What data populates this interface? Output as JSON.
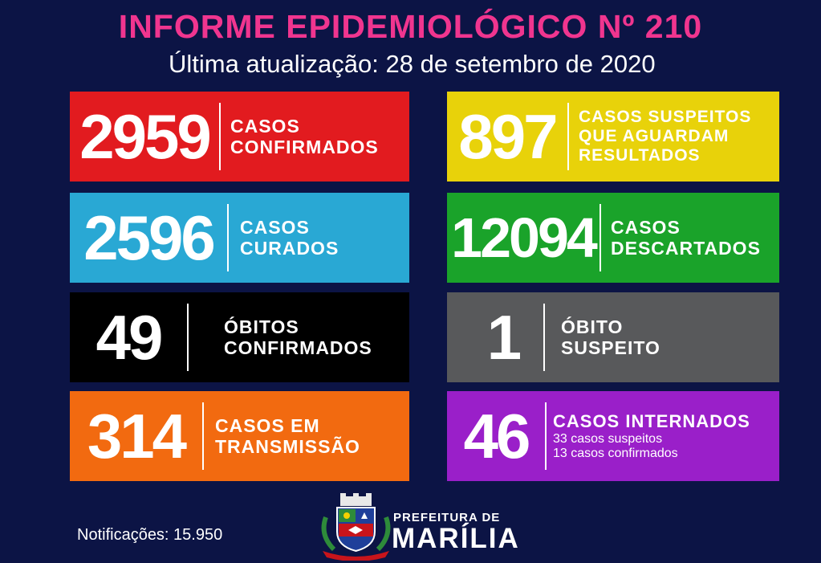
{
  "header": {
    "title": "INFORME EPIDEMIOLÓGICO Nº 210",
    "subtitle": "Última atualização: 28 de setembro de 2020"
  },
  "cards": {
    "confirmed": {
      "value": "2959",
      "line1": "CASOS",
      "line2": "CONFIRMADOS",
      "color": "#e21b1f"
    },
    "suspected": {
      "value": "897",
      "line1": "CASOS SUSPEITOS",
      "line2": "QUE AGUARDAM",
      "line3": "RESULTADOS",
      "color": "#e8d20a"
    },
    "cured": {
      "value": "2596",
      "line1": "CASOS",
      "line2": "CURADOS",
      "color": "#29a8d4"
    },
    "discarded": {
      "value": "12094",
      "line1": "CASOS",
      "line2": "DESCARTADOS",
      "color": "#1aa32a"
    },
    "deaths": {
      "value": "49",
      "line1": "ÓBITOS",
      "line2": "CONFIRMADOS",
      "color": "#000000"
    },
    "suspected_death": {
      "value": "1",
      "line1": "ÓBITO",
      "line2": "SUSPEITO",
      "color": "#58595b"
    },
    "transmission": {
      "value": "314",
      "line1": "CASOS EM",
      "line2": "TRANSMISSÃO",
      "color": "#f26a10"
    },
    "hospitalized": {
      "value": "46",
      "line1": "CASOS INTERNADOS",
      "sub1": "33 casos suspeitos",
      "sub2": "13 casos confirmados",
      "color": "#9a1fc9"
    }
  },
  "footer": {
    "notifications": "Notificações: 15.950",
    "prefeitura_small": "PREFEITURA DE",
    "prefeitura_big": "MARÍLIA",
    "logo_icon": "city-coat-of-arms-icon"
  }
}
